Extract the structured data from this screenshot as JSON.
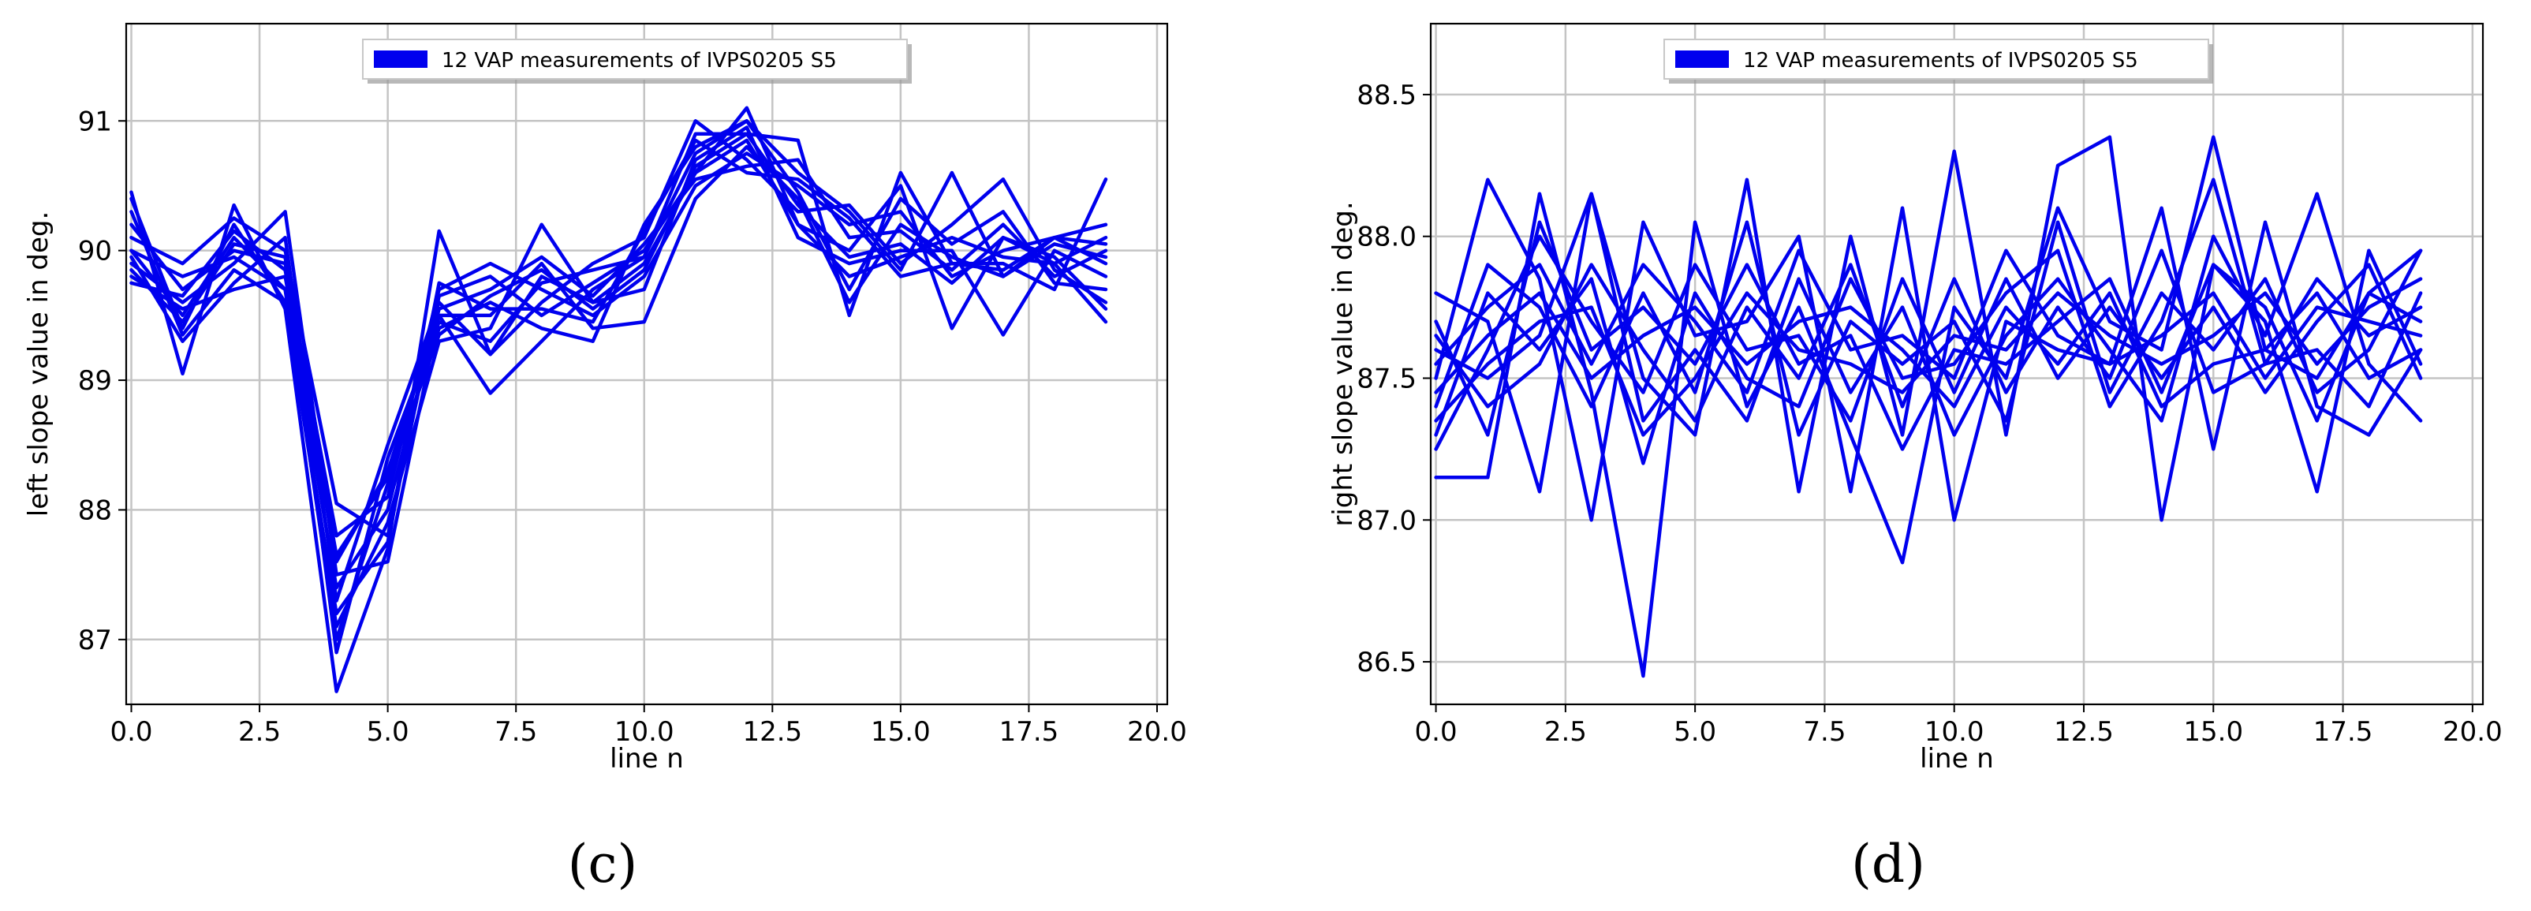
{
  "colors": {
    "series": "#0000ee",
    "grid": "#c4c4c4"
  },
  "chart_data": [
    {
      "type": "line",
      "panel_label": "(c)",
      "xlabel": "line n",
      "ylabel": "left slope value in deg.",
      "xlim": [
        -0.1,
        20.2
      ],
      "ylim": [
        86.5,
        91.75
      ],
      "xticks": [
        0,
        2.5,
        5,
        7.5,
        10,
        12.5,
        15,
        17.5,
        20
      ],
      "xtick_labels": [
        "0.0",
        "2.5",
        "5.0",
        "7.5",
        "10.0",
        "12.5",
        "15.0",
        "17.5",
        "20.0"
      ],
      "yticks": [
        87,
        88,
        89,
        90,
        91
      ],
      "ytick_labels": [
        "87",
        "88",
        "89",
        "90",
        "91"
      ],
      "grid": true,
      "legend": {
        "label": "12 VAP measurements of IVPS0205 S5",
        "placement": "top-center"
      },
      "x": [
        0,
        1,
        2,
        3,
        4,
        5,
        6,
        7,
        8,
        9,
        10,
        11,
        12,
        13,
        14,
        15,
        16,
        17,
        18,
        19
      ],
      "series": [
        {
          "values": [
            90.45,
            89.05,
            90.35,
            89.55,
            86.6,
            87.7,
            90.15,
            89.2,
            89.8,
            89.6,
            89.9,
            90.6,
            91.1,
            90.2,
            90.0,
            90.5,
            89.4,
            90.1,
            89.9,
            89.45
          ]
        },
        {
          "values": [
            90.0,
            89.5,
            90.1,
            89.7,
            87.0,
            88.2,
            89.4,
            89.6,
            89.4,
            89.3,
            90.2,
            90.8,
            91.0,
            90.6,
            90.3,
            89.85,
            90.6,
            89.8,
            90.1,
            89.9
          ]
        },
        {
          "values": [
            89.9,
            89.6,
            89.9,
            90.3,
            87.5,
            87.6,
            89.5,
            88.9,
            89.3,
            89.7,
            89.95,
            90.9,
            90.9,
            90.85,
            89.5,
            90.6,
            89.9,
            89.9,
            89.7,
            90.55
          ]
        },
        {
          "values": [
            89.95,
            89.3,
            89.75,
            90.1,
            87.3,
            88.5,
            89.6,
            89.2,
            89.6,
            89.9,
            90.1,
            91.0,
            90.7,
            90.3,
            90.35,
            89.9,
            90.2,
            90.55,
            89.85,
            89.6
          ]
        },
        {
          "values": [
            90.4,
            89.4,
            90.2,
            89.6,
            87.1,
            87.9,
            89.3,
            89.4,
            90.2,
            89.6,
            89.7,
            90.7,
            90.95,
            90.1,
            89.9,
            90.0,
            90.0,
            89.35,
            90.0,
            89.8
          ]
        },
        {
          "values": [
            90.2,
            89.7,
            90.0,
            89.9,
            87.8,
            88.1,
            89.7,
            89.9,
            89.7,
            89.5,
            89.8,
            90.5,
            90.75,
            90.5,
            90.2,
            90.3,
            89.8,
            90.0,
            90.1,
            90.2
          ]
        },
        {
          "values": [
            89.8,
            89.55,
            89.7,
            89.8,
            87.6,
            88.3,
            89.5,
            89.5,
            89.9,
            89.4,
            89.45,
            90.4,
            90.8,
            90.4,
            89.6,
            90.2,
            89.95,
            89.8,
            90.05,
            89.95
          ]
        },
        {
          "values": [
            90.1,
            89.9,
            90.25,
            90.0,
            88.05,
            87.8,
            89.65,
            89.8,
            89.5,
            89.75,
            90.0,
            90.6,
            90.85,
            90.2,
            89.8,
            89.95,
            90.1,
            89.95,
            89.9,
            90.1
          ]
        },
        {
          "values": [
            90.0,
            89.8,
            89.95,
            89.7,
            87.4,
            88.0,
            89.55,
            89.7,
            89.95,
            89.65,
            90.05,
            90.55,
            90.65,
            90.7,
            90.1,
            90.15,
            89.85,
            90.2,
            89.8,
            90.0
          ]
        },
        {
          "values": [
            89.85,
            89.45,
            90.05,
            89.95,
            86.9,
            88.4,
            89.45,
            89.3,
            89.75,
            89.85,
            89.95,
            90.75,
            91.0,
            90.45,
            89.7,
            90.4,
            90.05,
            90.3,
            89.75,
            89.7
          ]
        },
        {
          "values": [
            90.3,
            89.35,
            89.85,
            89.6,
            87.2,
            87.75,
            89.75,
            89.55,
            89.55,
            89.45,
            90.15,
            90.85,
            90.6,
            90.55,
            90.25,
            89.8,
            89.9,
            89.85,
            90.1,
            90.05
          ]
        },
        {
          "values": [
            89.75,
            89.65,
            90.15,
            89.85,
            87.65,
            88.25,
            89.35,
            89.65,
            89.85,
            89.55,
            89.85,
            90.65,
            90.9,
            90.35,
            89.95,
            90.05,
            89.75,
            90.1,
            89.95,
            89.55
          ]
        }
      ]
    },
    {
      "type": "line",
      "panel_label": "(d)",
      "xlabel": "line n",
      "ylabel": "right slope value in deg.",
      "xlim": [
        -0.1,
        20.2
      ],
      "ylim": [
        86.35,
        88.75
      ],
      "xticks": [
        0,
        2.5,
        5,
        7.5,
        10,
        12.5,
        15,
        17.5,
        20
      ],
      "xtick_labels": [
        "0.0",
        "2.5",
        "5.0",
        "7.5",
        "10.0",
        "12.5",
        "15.0",
        "17.5",
        "20.0"
      ],
      "yticks": [
        86.5,
        87.0,
        87.5,
        88.0,
        88.5
      ],
      "ytick_labels": [
        "86.5",
        "87.0",
        "87.5",
        "88.0",
        "88.5"
      ],
      "grid": true,
      "legend": {
        "label": "12 VAP measurements of IVPS0205 S5",
        "placement": "top-center"
      },
      "x": [
        0,
        1,
        2,
        3,
        4,
        5,
        6,
        7,
        8,
        9,
        10,
        11,
        12,
        13,
        14,
        15,
        16,
        17,
        18,
        19
      ],
      "series": [
        {
          "values": [
            87.15,
            87.15,
            88.15,
            87.45,
            86.45,
            88.05,
            87.4,
            87.75,
            87.3,
            86.85,
            87.75,
            87.5,
            88.1,
            87.7,
            87.6,
            88.35,
            87.6,
            87.5,
            87.8,
            87.95
          ]
        },
        {
          "values": [
            87.8,
            87.7,
            87.1,
            88.15,
            87.5,
            87.3,
            88.2,
            87.1,
            88.0,
            87.3,
            88.3,
            87.3,
            88.25,
            88.35,
            87.0,
            87.9,
            87.7,
            87.1,
            87.95,
            87.55
          ]
        },
        {
          "values": [
            87.5,
            88.2,
            87.85,
            87.0,
            88.05,
            87.65,
            87.7,
            88.0,
            87.1,
            88.1,
            87.0,
            87.7,
            87.6,
            87.55,
            88.1,
            87.25,
            88.05,
            87.4,
            87.3,
            87.6
          ]
        },
        {
          "values": [
            87.3,
            87.8,
            87.6,
            87.85,
            87.2,
            87.8,
            87.5,
            87.4,
            87.85,
            87.5,
            87.55,
            87.8,
            87.95,
            87.4,
            87.7,
            88.2,
            87.55,
            87.85,
            87.65,
            87.75
          ]
        },
        {
          "values": [
            87.7,
            87.3,
            88.05,
            87.6,
            87.75,
            87.55,
            87.9,
            87.55,
            87.65,
            87.25,
            87.6,
            87.55,
            87.7,
            87.85,
            87.45,
            87.9,
            87.75,
            87.35,
            87.8,
            87.7
          ]
        },
        {
          "values": [
            87.6,
            87.5,
            87.65,
            88.15,
            87.35,
            87.6,
            87.35,
            87.85,
            87.45,
            87.75,
            87.3,
            87.65,
            87.85,
            87.6,
            87.35,
            88.0,
            87.65,
            88.15,
            87.55,
            87.35
          ]
        },
        {
          "values": [
            87.4,
            87.9,
            87.75,
            87.4,
            87.8,
            87.45,
            88.05,
            87.3,
            87.7,
            87.55,
            87.7,
            87.35,
            88.05,
            87.45,
            87.8,
            87.6,
            87.85,
            87.45,
            87.6,
            87.95
          ]
        },
        {
          "values": [
            87.25,
            87.6,
            88.0,
            87.7,
            87.45,
            87.9,
            87.6,
            87.65,
            87.35,
            87.85,
            87.45,
            87.85,
            87.5,
            87.75,
            87.5,
            87.75,
            87.45,
            87.7,
            87.9,
            87.5
          ]
        },
        {
          "values": [
            87.65,
            87.4,
            87.55,
            87.9,
            87.6,
            87.35,
            87.75,
            87.5,
            87.9,
            87.4,
            87.85,
            87.45,
            87.75,
            87.5,
            87.95,
            87.45,
            87.55,
            87.6,
            87.4,
            87.8
          ]
        },
        {
          "values": [
            87.55,
            87.75,
            87.9,
            87.55,
            87.9,
            87.7,
            87.45,
            87.95,
            87.6,
            87.65,
            87.5,
            87.95,
            87.65,
            87.55,
            87.65,
            87.8,
            87.5,
            87.75,
            87.7,
            87.65
          ]
        },
        {
          "values": [
            87.35,
            87.55,
            87.7,
            87.75,
            87.3,
            87.5,
            87.8,
            87.6,
            87.55,
            87.45,
            87.65,
            87.6,
            87.8,
            87.65,
            87.55,
            87.65,
            87.8,
            87.55,
            87.75,
            87.85
          ]
        },
        {
          "values": [
            87.45,
            87.65,
            87.8,
            87.5,
            87.65,
            87.75,
            87.55,
            87.7,
            87.75,
            87.6,
            87.4,
            87.75,
            87.55,
            87.8,
            87.4,
            87.55,
            87.6,
            87.8,
            87.5,
            87.6
          ]
        }
      ]
    }
  ]
}
